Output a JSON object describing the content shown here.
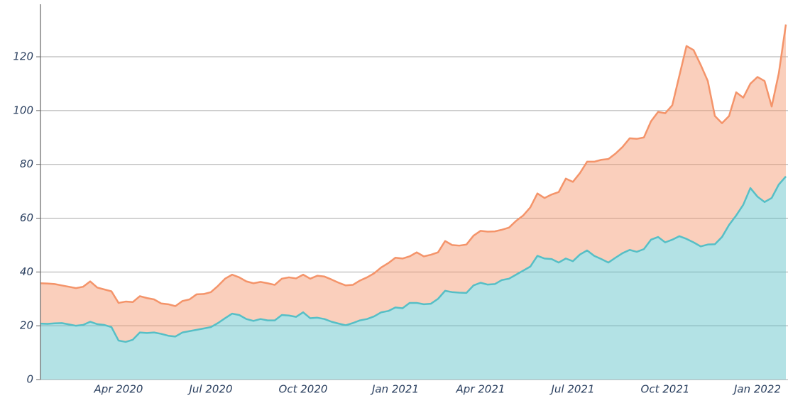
{
  "chart_data": {
    "type": "area",
    "stacked": true,
    "categories": [
      null,
      null,
      null,
      null,
      null,
      null,
      null,
      null,
      null,
      null,
      null,
      "Apr 2020",
      null,
      null,
      null,
      null,
      null,
      null,
      null,
      null,
      null,
      null,
      null,
      null,
      "Jul 2020",
      null,
      null,
      null,
      null,
      null,
      null,
      null,
      null,
      null,
      null,
      null,
      null,
      "Oct 2020",
      null,
      null,
      null,
      null,
      null,
      null,
      null,
      null,
      null,
      null,
      null,
      null,
      "Jan 2021",
      null,
      null,
      null,
      null,
      null,
      null,
      null,
      null,
      null,
      null,
      null,
      "Apr 2021",
      null,
      null,
      null,
      null,
      null,
      null,
      null,
      null,
      null,
      null,
      null,
      null,
      "Jul 2021",
      null,
      null,
      null,
      null,
      null,
      null,
      null,
      null,
      null,
      null,
      null,
      null,
      "Oct 2021",
      null,
      null,
      null,
      null,
      null,
      null,
      null,
      null,
      null,
      null,
      null,
      null,
      "Jan 2022",
      null,
      null,
      null,
      null
    ],
    "series": [
      {
        "color": "#56bfc6",
        "values": [
          20.8,
          20.7,
          20.9,
          21,
          20.5,
          20,
          20.3,
          21.5,
          20.6,
          20.3,
          19.5,
          14.5,
          14,
          14.8,
          17.5,
          17.3,
          17.5,
          17,
          16.3,
          16,
          17.5,
          18,
          18.5,
          19,
          19.5,
          21,
          22.8,
          24.5,
          24,
          22.5,
          21.8,
          22.5,
          22,
          22,
          24,
          23.8,
          23.3,
          25,
          22.8,
          23,
          22.5,
          21.5,
          20.8,
          20.2,
          21,
          22,
          22.5,
          23.5,
          25,
          25.5,
          26.8,
          26.5,
          28.5,
          28.5,
          28,
          28.2,
          30,
          33,
          32.5,
          32.3,
          32.2,
          35,
          36,
          35.3,
          35.5,
          37,
          37.5,
          39,
          40.5,
          42,
          46,
          45,
          44.8,
          43.5,
          45,
          44,
          46.5,
          48,
          46,
          44.8,
          43.5,
          45.3,
          47,
          48.2,
          47.5,
          48.5,
          52,
          53,
          51,
          52,
          53.3,
          52.3,
          51,
          49.5,
          50.2,
          50.3,
          53,
          57.5,
          61,
          65,
          71.2,
          68,
          66,
          67.5,
          72.5,
          75.5
        ]
      },
      {
        "color": "#f4946a",
        "values": [
          15,
          15,
          14.6,
          14,
          14,
          14,
          14.2,
          15,
          13.6,
          13.2,
          13.3,
          14,
          15,
          14,
          13.5,
          13,
          12.3,
          11.3,
          11.7,
          11.3,
          11.7,
          11.8,
          13.2,
          12.8,
          13,
          13.8,
          14.7,
          14.5,
          14,
          14,
          14,
          13.8,
          13.8,
          13.2,
          13.5,
          14.2,
          14.3,
          14,
          14.7,
          15.6,
          15.8,
          15.7,
          15.2,
          14.8,
          14.2,
          14.8,
          15.5,
          16,
          16.7,
          17.8,
          18.5,
          18.5,
          17.3,
          18.8,
          17.8,
          18.2,
          17.3,
          18.5,
          17.5,
          17.5,
          18,
          18.5,
          19.3,
          19.7,
          19.6,
          18.7,
          19,
          20,
          20.5,
          22,
          23.2,
          22.5,
          24,
          26.2,
          29.7,
          29.5,
          30.3,
          33,
          35,
          36.9,
          38.5,
          38.7,
          39.5,
          41.5,
          42,
          41.5,
          44,
          46.5,
          48,
          50,
          59.7,
          71.7,
          71.5,
          67.5,
          60.8,
          47.7,
          42.3,
          40.5,
          45.8,
          39.8,
          38.8,
          44.5,
          45,
          34,
          41.3,
          56.5
        ]
      }
    ],
    "ylim": [
      0,
      139
    ],
    "yticks": [
      0,
      20,
      40,
      60,
      80,
      100,
      120
    ],
    "grid": true
  }
}
